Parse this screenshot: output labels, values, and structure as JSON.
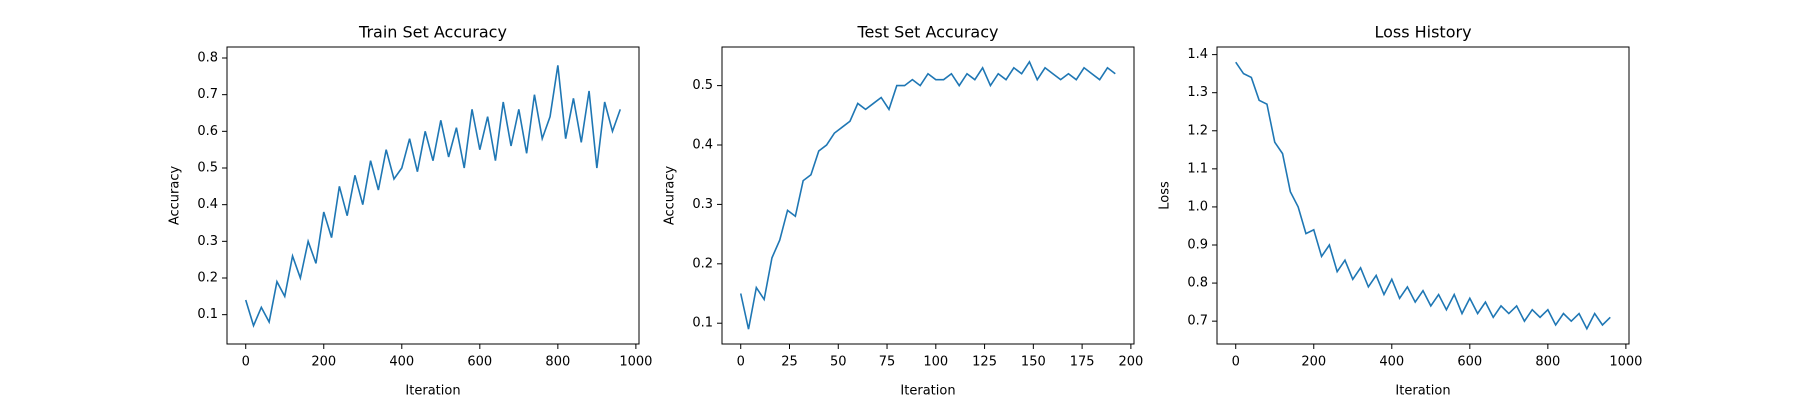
{
  "chart_data": [
    {
      "type": "line",
      "title": "Train Set Accuracy",
      "xlabel": "Iteration",
      "ylabel": "Accuracy",
      "color": "#1f77b4",
      "x": [
        0,
        20,
        40,
        60,
        80,
        100,
        120,
        140,
        160,
        180,
        200,
        220,
        240,
        260,
        280,
        300,
        320,
        340,
        360,
        380,
        400,
        420,
        440,
        460,
        480,
        500,
        520,
        540,
        560,
        580,
        600,
        620,
        640,
        660,
        680,
        700,
        720,
        740,
        760,
        780,
        800,
        820,
        840,
        860,
        880,
        900,
        920,
        940,
        960
      ],
      "values": [
        0.14,
        0.07,
        0.12,
        0.08,
        0.19,
        0.15,
        0.26,
        0.2,
        0.3,
        0.24,
        0.38,
        0.31,
        0.45,
        0.37,
        0.48,
        0.4,
        0.52,
        0.44,
        0.55,
        0.47,
        0.5,
        0.58,
        0.49,
        0.6,
        0.52,
        0.63,
        0.53,
        0.61,
        0.5,
        0.66,
        0.55,
        0.64,
        0.52,
        0.68,
        0.56,
        0.66,
        0.54,
        0.7,
        0.58,
        0.64,
        0.78,
        0.58,
        0.69,
        0.57,
        0.71,
        0.5,
        0.68,
        0.6,
        0.66
      ],
      "xlim": [
        -48,
        1008
      ],
      "ylim": [
        0.02,
        0.83
      ],
      "xticks": [
        0,
        200,
        400,
        600,
        800,
        1000
      ],
      "yticks": [
        0.1,
        0.2,
        0.3,
        0.4,
        0.5,
        0.6,
        0.7,
        0.8
      ]
    },
    {
      "type": "line",
      "title": "Test Set Accuracy",
      "xlabel": "Iteration",
      "ylabel": "Accuracy",
      "color": "#1f77b4",
      "x": [
        0,
        4,
        8,
        12,
        16,
        20,
        24,
        28,
        32,
        36,
        40,
        44,
        48,
        52,
        56,
        60,
        64,
        68,
        72,
        76,
        80,
        84,
        88,
        92,
        96,
        100,
        104,
        108,
        112,
        116,
        120,
        124,
        128,
        132,
        136,
        140,
        144,
        148,
        152,
        156,
        160,
        164,
        168,
        172,
        176,
        180,
        184,
        188,
        192
      ],
      "values": [
        0.15,
        0.09,
        0.16,
        0.14,
        0.21,
        0.24,
        0.29,
        0.28,
        0.34,
        0.35,
        0.39,
        0.4,
        0.42,
        0.43,
        0.44,
        0.47,
        0.46,
        0.47,
        0.48,
        0.46,
        0.5,
        0.5,
        0.51,
        0.5,
        0.52,
        0.51,
        0.51,
        0.52,
        0.5,
        0.52,
        0.51,
        0.53,
        0.5,
        0.52,
        0.51,
        0.53,
        0.52,
        0.54,
        0.51,
        0.53,
        0.52,
        0.51,
        0.52,
        0.51,
        0.53,
        0.52,
        0.51,
        0.53,
        0.52
      ],
      "xlim": [
        -9.6,
        201.6
      ],
      "ylim": [
        0.065,
        0.565
      ],
      "xticks": [
        0,
        25,
        50,
        75,
        100,
        125,
        150,
        175,
        200
      ],
      "yticks": [
        0.1,
        0.2,
        0.3,
        0.4,
        0.5
      ]
    },
    {
      "type": "line",
      "title": "Loss History",
      "xlabel": "Iteration",
      "ylabel": "Loss",
      "color": "#1f77b4",
      "x": [
        0,
        20,
        40,
        60,
        80,
        100,
        120,
        140,
        160,
        180,
        200,
        220,
        240,
        260,
        280,
        300,
        320,
        340,
        360,
        380,
        400,
        420,
        440,
        460,
        480,
        500,
        520,
        540,
        560,
        580,
        600,
        620,
        640,
        660,
        680,
        700,
        720,
        740,
        760,
        780,
        800,
        820,
        840,
        860,
        880,
        900,
        920,
        940,
        960
      ],
      "values": [
        1.38,
        1.35,
        1.34,
        1.28,
        1.27,
        1.17,
        1.14,
        1.04,
        1.0,
        0.93,
        0.94,
        0.87,
        0.9,
        0.83,
        0.86,
        0.81,
        0.84,
        0.79,
        0.82,
        0.77,
        0.81,
        0.76,
        0.79,
        0.75,
        0.78,
        0.74,
        0.77,
        0.73,
        0.77,
        0.72,
        0.76,
        0.72,
        0.75,
        0.71,
        0.74,
        0.72,
        0.74,
        0.7,
        0.73,
        0.71,
        0.73,
        0.69,
        0.72,
        0.7,
        0.72,
        0.68,
        0.72,
        0.69,
        0.71
      ],
      "xlim": [
        -48,
        1008
      ],
      "ylim": [
        0.64,
        1.42
      ],
      "xticks": [
        0,
        200,
        400,
        600,
        800,
        1000
      ],
      "yticks": [
        0.7,
        0.8,
        0.9,
        {
          "value": 1,
          "label": "1.0"
        },
        1.1,
        1.2,
        1.3,
        1.4
      ]
    }
  ]
}
